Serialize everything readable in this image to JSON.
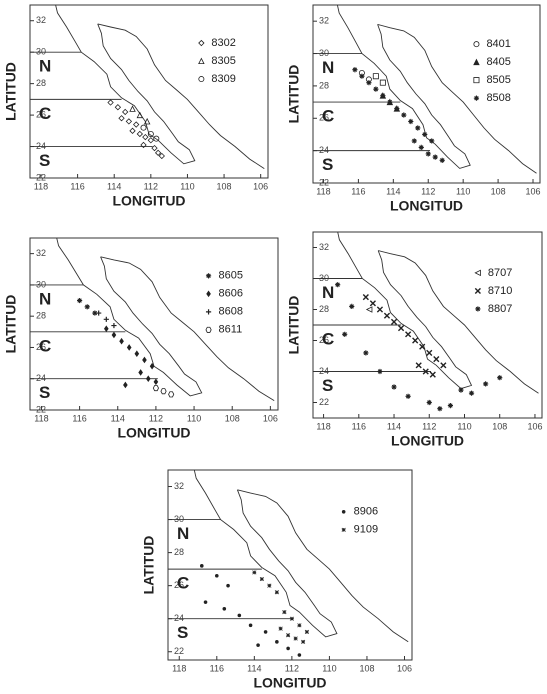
{
  "panels": [
    {
      "xlabel": "LONGITUD",
      "ylabel": "LATITUD",
      "xlim": [
        118.6,
        105.6
      ],
      "ylim": [
        22,
        33
      ],
      "xticks": [
        118,
        116,
        114,
        112,
        110,
        108,
        106
      ],
      "yticks": [
        22,
        24,
        26,
        28,
        30,
        32
      ],
      "zones": [
        {
          "label": "N",
          "lat": 30
        },
        {
          "label": "C",
          "lat": 27
        },
        {
          "label": "S",
          "lat": 24
        }
      ],
      "series": [
        {
          "name": "8302",
          "marker": "diamond",
          "lon": [
            114.2,
            113.8,
            113.4,
            113.6,
            113.2,
            112.8,
            113.0,
            112.6,
            112.3,
            112.0,
            112.4,
            111.8,
            111.6,
            111.4
          ],
          "lat": [
            26.8,
            26.5,
            26.2,
            25.8,
            25.6,
            25.4,
            25.0,
            24.8,
            24.6,
            24.4,
            24.1,
            23.9,
            23.6,
            23.4
          ]
        },
        {
          "name": "8305",
          "marker": "triangle",
          "lon": [
            113.0,
            112.6,
            112.2
          ],
          "lat": [
            26.4,
            26.0,
            25.6
          ]
        },
        {
          "name": "8309",
          "marker": "circle",
          "lon": [
            112.4,
            112.0,
            111.7
          ],
          "lat": [
            25.2,
            24.8,
            24.5
          ]
        }
      ]
    },
    {
      "xlabel": "LONGITUD",
      "ylabel": "LATITUD",
      "xlim": [
        118.6,
        105.6
      ],
      "ylim": [
        22,
        33
      ],
      "xticks": [
        118,
        116,
        114,
        112,
        110,
        108,
        106
      ],
      "yticks": [
        22,
        24,
        26,
        28,
        30,
        32
      ],
      "zones": [
        {
          "label": "N",
          "lat": 30
        },
        {
          "label": "C",
          "lat": 27
        },
        {
          "label": "S",
          "lat": 24
        }
      ],
      "series": [
        {
          "name": "8401",
          "marker": "circle",
          "lon": [
            115.8,
            115.4
          ],
          "lat": [
            28.8,
            28.4
          ]
        },
        {
          "name": "8405",
          "marker": "filled-triangle",
          "lon": [
            114.6,
            114.2,
            113.8
          ],
          "lat": [
            27.4,
            27.0,
            26.6
          ]
        },
        {
          "name": "8505",
          "marker": "square",
          "lon": [
            115.0,
            114.6
          ],
          "lat": [
            28.6,
            28.2
          ]
        },
        {
          "name": "8508",
          "marker": "star",
          "lon": [
            116.2,
            115.8,
            115.4,
            115.0,
            114.6,
            114.2,
            113.8,
            113.4,
            113.0,
            112.6,
            112.2,
            111.8,
            112.8,
            112.4,
            112.0,
            111.6,
            111.2
          ],
          "lat": [
            29.0,
            28.6,
            28.2,
            27.8,
            27.4,
            27.0,
            26.6,
            26.2,
            25.8,
            25.4,
            25.0,
            24.6,
            24.6,
            24.2,
            23.8,
            23.6,
            23.4
          ]
        }
      ]
    },
    {
      "xlabel": "LONGITUD",
      "ylabel": "LATITUD",
      "xlim": [
        118.6,
        105.6
      ],
      "ylim": [
        22,
        33
      ],
      "xticks": [
        118,
        116,
        114,
        112,
        110,
        108,
        106
      ],
      "yticks": [
        22,
        24,
        26,
        28,
        30,
        32
      ],
      "zones": [
        {
          "label": "N",
          "lat": 30
        },
        {
          "label": "C",
          "lat": 27
        },
        {
          "label": "S",
          "lat": 24
        }
      ],
      "series": [
        {
          "name": "8605",
          "marker": "plus-star",
          "lon": [
            116.0,
            115.6,
            115.2
          ],
          "lat": [
            29.0,
            28.6,
            28.2
          ]
        },
        {
          "name": "8606",
          "marker": "filled-diamond",
          "lon": [
            114.6,
            114.2,
            113.8,
            113.4,
            113.0,
            112.6,
            112.2,
            112.8,
            112.4,
            112.0,
            113.6
          ],
          "lat": [
            27.2,
            26.8,
            26.4,
            26.0,
            25.6,
            25.2,
            24.8,
            24.4,
            24.0,
            23.8,
            23.6
          ]
        },
        {
          "name": "8608",
          "marker": "cross",
          "lon": [
            115.0,
            114.6,
            114.2
          ],
          "lat": [
            28.2,
            27.8,
            27.4
          ]
        },
        {
          "name": "8611",
          "marker": "hexagon",
          "lon": [
            112.0,
            111.6,
            111.2
          ],
          "lat": [
            23.4,
            23.2,
            23.0
          ]
        }
      ]
    },
    {
      "xlabel": "LONGITUD",
      "ylabel": "LATITUD",
      "xlim": [
        118.6,
        105.6
      ],
      "ylim": [
        21,
        33
      ],
      "xticks": [
        118,
        116,
        114,
        112,
        110,
        108,
        106
      ],
      "yticks": [
        22,
        24,
        26,
        28,
        30,
        32
      ],
      "zones": [
        {
          "label": "N",
          "lat": 30
        },
        {
          "label": "C",
          "lat": 27
        },
        {
          "label": "S",
          "lat": 24
        }
      ],
      "series": [
        {
          "name": "8707",
          "marker": "left-triangle",
          "lon": [
            115.4
          ],
          "lat": [
            28.0
          ]
        },
        {
          "name": "8710",
          "marker": "x",
          "lon": [
            115.6,
            115.2,
            114.8,
            114.4,
            114.0,
            113.6,
            113.2,
            112.8,
            112.4,
            112.0,
            111.6,
            111.2,
            112.6,
            112.2,
            111.8
          ],
          "lat": [
            28.8,
            28.4,
            28.0,
            27.6,
            27.2,
            26.8,
            26.4,
            26.0,
            25.6,
            25.2,
            24.8,
            24.4,
            24.4,
            24.0,
            23.8
          ]
        },
        {
          "name": "8807",
          "marker": "star",
          "lon": [
            117.2,
            116.4,
            116.8,
            115.6,
            114.8,
            114.0,
            113.2,
            112.0,
            110.8,
            109.6,
            108.8,
            108.0,
            110.2,
            111.4
          ],
          "lat": [
            29.6,
            28.2,
            26.4,
            25.2,
            24.0,
            23.0,
            22.4,
            22.0,
            21.8,
            22.6,
            23.2,
            23.6,
            22.8,
            21.6
          ]
        }
      ]
    },
    {
      "xlabel": "LONGITUD",
      "ylabel": "LATITUD",
      "xlim": [
        118.6,
        105.6
      ],
      "ylim": [
        21.5,
        33
      ],
      "xticks": [
        118,
        116,
        114,
        112,
        110,
        108,
        106
      ],
      "yticks": [
        22,
        24,
        26,
        28,
        30,
        32
      ],
      "zones": [
        {
          "label": "N",
          "lat": 30
        },
        {
          "label": "C",
          "lat": 27
        },
        {
          "label": "S",
          "lat": 24
        }
      ],
      "series": [
        {
          "name": "8906",
          "marker": "dot",
          "lon": [
            116.8,
            116.0,
            115.4,
            116.6,
            115.6,
            114.8,
            114.2,
            113.4,
            112.8,
            112.2,
            111.6,
            113.8
          ],
          "lat": [
            27.2,
            26.6,
            26.0,
            25.0,
            24.6,
            24.2,
            23.6,
            23.2,
            22.6,
            22.2,
            21.8,
            22.4
          ]
        },
        {
          "name": "9109",
          "marker": "small-star",
          "lon": [
            114.0,
            113.6,
            113.2,
            112.8,
            112.4,
            112.0,
            111.6,
            111.2,
            112.6,
            112.2,
            111.8,
            111.4
          ],
          "lat": [
            26.8,
            26.4,
            26.0,
            25.6,
            24.4,
            24.0,
            23.6,
            23.2,
            23.4,
            23.0,
            22.8,
            22.6
          ]
        }
      ]
    }
  ]
}
